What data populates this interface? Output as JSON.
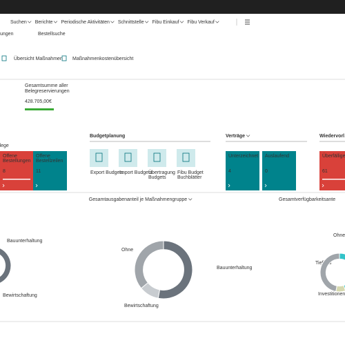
{
  "menu": [
    "Suchen",
    "Berichte",
    "Periodische Aktivitäten",
    "Schnittstelle",
    "Fibu Einkauf",
    "Fibu Verkauf"
  ],
  "links": [
    "ungen",
    "Bestellsuche"
  ],
  "actions": [
    "Übersicht Maßnahmen",
    "Maßnahmenkostenübersicht"
  ],
  "kpi": {
    "label": [
      "Gesamtsumme aller",
      "Belegreservierungen"
    ],
    "value": "428.705,00€"
  },
  "sections": [
    "llege",
    "Budgetplanung",
    "Verträge",
    "Wiedervorl"
  ],
  "tiles": [
    {
      "label": [
        "Offene",
        "Bestellungen"
      ],
      "value": 8,
      "color": "#d9413a"
    },
    {
      "label": [
        "Offene",
        "Bestellzeilen"
      ],
      "value": 11,
      "color": "#00838c"
    },
    {
      "label": [
        "Unterzeichnet"
      ],
      "value": 4,
      "color": "#00838c"
    },
    {
      "label": [
        "Auslaufend"
      ],
      "value": 0,
      "color": "#00838c"
    },
    {
      "label": [
        "Überfällige"
      ],
      "value": 61,
      "color": "#d9413a"
    }
  ],
  "budget_actions": [
    [
      "Export Budgets"
    ],
    [
      "Import Budgets"
    ],
    [
      "Übertragung",
      "Budgets"
    ],
    [
      "Fibu Budget",
      "Buchblätter"
    ]
  ],
  "charts": [
    {
      "type": "donut",
      "segments": [
        {
          "name": "Bauunterhaltung",
          "value": 60,
          "color": "#6b737c"
        },
        {
          "name": "Bewirtschaftung",
          "value": 15,
          "color": "#c8ccd0"
        },
        {
          "name": null,
          "value": 25,
          "color": "#a0a5aa"
        }
      ]
    },
    {
      "type": "donut",
      "title": "Gesamtausgabenanteil je Maßnahmengruppe",
      "segments": [
        {
          "name": "Bauunterhaltung",
          "value": 53,
          "color": "#6b737c"
        },
        {
          "name": "Bewirtschaftung",
          "value": 11,
          "color": "#c8ccd0"
        },
        {
          "name": "Ohne",
          "value": 36,
          "color": "#a0a5aa"
        }
      ]
    },
    {
      "type": "donut",
      "title": "Gesamtverfügbarkeitsante",
      "segments": [
        {
          "name": "Investitionen",
          "value": 45,
          "color": "#33c3c9"
        },
        {
          "name": "Tiefbau",
          "value": 8,
          "color": "#d6d9b0"
        },
        {
          "name": "Ohne",
          "value": 47,
          "color": "#a0a5aa"
        }
      ]
    }
  ]
}
